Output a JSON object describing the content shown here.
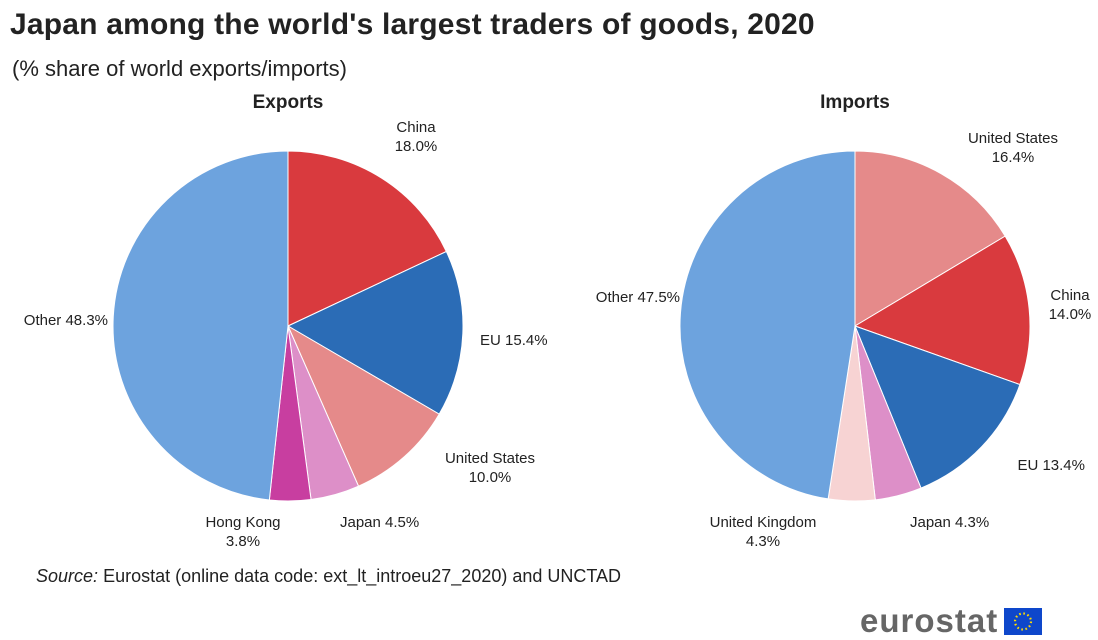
{
  "title": "Japan among the world's largest traders of goods, 2020",
  "subtitle": "(% share of world exports/imports)",
  "source": {
    "prefix": "Source:",
    "text": "Eurostat (online data code: ext_lt_introeu27_2020) and UNCTAD"
  },
  "logo": {
    "text": "eurostat",
    "flag_icon": "eu-flag-icon"
  },
  "colors": {
    "china": "#d93a3e",
    "eu": "#2b6cb6",
    "united_states": "#e58a8a",
    "japan": "#dd8fc8",
    "hong_kong": "#c83ea0",
    "united_kingdom": "#f7d3d3",
    "other": "#6da3de"
  },
  "chart_data": [
    {
      "type": "pie",
      "title": "Exports",
      "unit": "%",
      "slices": [
        {
          "label": "China",
          "value": 18.0,
          "display": "18.0%",
          "color": "#d93a3e"
        },
        {
          "label": "EU",
          "value": 15.4,
          "display": "15.4%",
          "color": "#2b6cb6"
        },
        {
          "label": "United States",
          "value": 10.0,
          "display": "10.0%",
          "color": "#e58a8a"
        },
        {
          "label": "Japan",
          "value": 4.5,
          "display": "4.5%",
          "color": "#dd8fc8"
        },
        {
          "label": "Hong Kong",
          "value": 3.8,
          "display": "3.8%",
          "color": "#c83ea0"
        },
        {
          "label": "Other",
          "value": 48.3,
          "display": "48.3%",
          "color": "#6da3de"
        }
      ]
    },
    {
      "type": "pie",
      "title": "Imports",
      "unit": "%",
      "slices": [
        {
          "label": "United States",
          "value": 16.4,
          "display": "16.4%",
          "color": "#e58a8a"
        },
        {
          "label": "China",
          "value": 14.0,
          "display": "14.0%",
          "color": "#d93a3e"
        },
        {
          "label": "EU",
          "value": 13.4,
          "display": "13.4%",
          "color": "#2b6cb6"
        },
        {
          "label": "Japan",
          "value": 4.3,
          "display": "4.3%",
          "color": "#dd8fc8"
        },
        {
          "label": "United Kingdom",
          "value": 4.3,
          "display": "4.3%",
          "color": "#f7d3d3"
        },
        {
          "label": "Other",
          "value": 47.5,
          "display": "47.5%",
          "color": "#6da3de"
        }
      ]
    }
  ]
}
